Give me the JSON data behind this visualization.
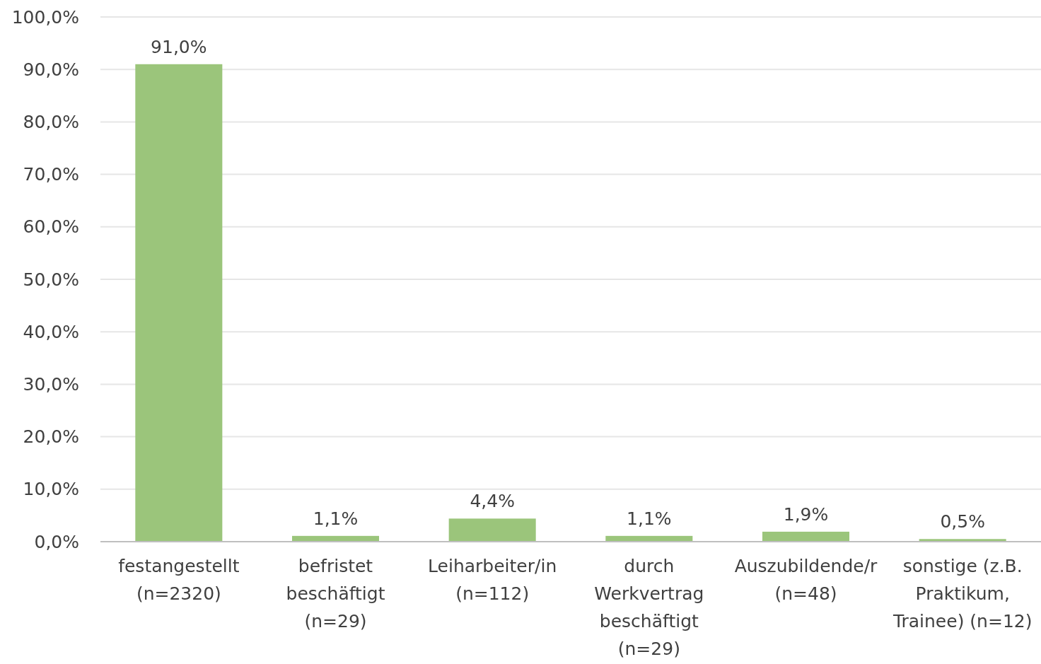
{
  "chart_data": {
    "type": "bar",
    "categories": [
      "festangestellt (n=2320)",
      "befristet beschäftigt (n=29)",
      "Leiharbeiter/in (n=112)",
      "durch Werkvertrag beschäftigt (n=29)",
      "Auszubildende/r (n=48)",
      "sonstige (z.B. Praktikum, Trainee) (n=12)"
    ],
    "values": [
      91.0,
      1.1,
      4.4,
      1.1,
      1.9,
      0.5
    ],
    "value_labels": [
      "91,0%",
      "1,1%",
      "4,4%",
      "1,1%",
      "1,9%",
      "0,5%"
    ],
    "color": "#9bc57b",
    "ylim": [
      0,
      100
    ],
    "yticks": [
      {
        "value": 0,
        "label": "0,0%"
      },
      {
        "value": 10,
        "label": "10,0%"
      },
      {
        "value": 20,
        "label": "20,0%"
      },
      {
        "value": 30,
        "label": "30,0%"
      },
      {
        "value": 40,
        "label": "40,0%"
      },
      {
        "value": 50,
        "label": "50,0%"
      },
      {
        "value": 60,
        "label": "60,0%"
      },
      {
        "value": 70,
        "label": "70,0%"
      },
      {
        "value": 80,
        "label": "80,0%"
      },
      {
        "value": 90,
        "label": "90,0%"
      },
      {
        "value": 100,
        "label": "100,0%"
      }
    ],
    "grid": "y"
  }
}
